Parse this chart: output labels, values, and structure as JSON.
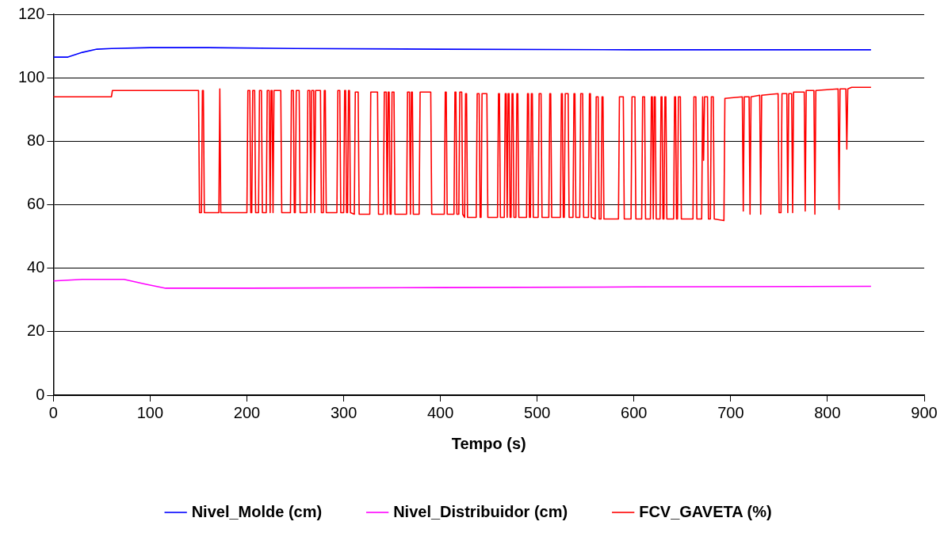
{
  "chart_data": {
    "type": "line",
    "xlabel": "Tempo (s)",
    "xlim": [
      0,
      900
    ],
    "xticks": [
      0,
      100,
      200,
      300,
      400,
      500,
      600,
      700,
      800,
      900
    ],
    "ylim": [
      0,
      120
    ],
    "yticks": [
      0,
      20,
      40,
      60,
      80,
      100,
      120
    ],
    "grid": "y",
    "legend": "bottom",
    "marker": "none",
    "line_style": "solid",
    "series": [
      {
        "name": "Nivel_Molde (cm)",
        "color": "#0000ff",
        "x": [
          0,
          15,
          30,
          45,
          60,
          100,
          160,
          250,
          400,
          600,
          845
        ],
        "values": [
          106.5,
          106.5,
          108,
          109,
          109.2,
          109.5,
          109.5,
          109.2,
          109,
          108.8,
          108.8
        ]
      },
      {
        "name": "Nivel_Distribuidor (cm)",
        "color": "#ff00ff",
        "x": [
          0,
          30,
          73,
          95,
          116,
          200,
          400,
          600,
          845
        ],
        "values": [
          36,
          36.5,
          36.5,
          35,
          33.7,
          33.7,
          33.9,
          34.1,
          34.3
        ]
      },
      {
        "name": "FCV_GAVETA (%)",
        "color": "#ff0000",
        "x": [
          0,
          60,
          61,
          150,
          151,
          153,
          154,
          155,
          156,
          171,
          172,
          173,
          200,
          201,
          203,
          204,
          205,
          206,
          208,
          209,
          212,
          213,
          215,
          216,
          220,
          221,
          223,
          224,
          224,
          225,
          226,
          227,
          227,
          228,
          235,
          236,
          245,
          246,
          248,
          249,
          250,
          251,
          254,
          255,
          262,
          263,
          265,
          266,
          266,
          267,
          269,
          270,
          270,
          271,
          276,
          277,
          279,
          280,
          281,
          282,
          293,
          294,
          296,
          297,
          300,
          301,
          302,
          303,
          304,
          305,
          306,
          307,
          311,
          312,
          315,
          316,
          327,
          328,
          335,
          336,
          341,
          342,
          344,
          345,
          345,
          346,
          347,
          348,
          349,
          350,
          352,
          353,
          365,
          366,
          368,
          369,
          369,
          370,
          371,
          372,
          378,
          379,
          390,
          391,
          404,
          405,
          406,
          407,
          414,
          415,
          416,
          417,
          419,
          420,
          422,
          423,
          425,
          426,
          427,
          428,
          437,
          438,
          440,
          441,
          442,
          443,
          448,
          449,
          459,
          460,
          461,
          462,
          466,
          467,
          468,
          469,
          469,
          470,
          471,
          472,
          473,
          474,
          475,
          476,
          478,
          479,
          480,
          481,
          489,
          490,
          491,
          492,
          493,
          494,
          495,
          496,
          501,
          502,
          504,
          505,
          512,
          513,
          514,
          515,
          524,
          525,
          526,
          527,
          528,
          529,
          532,
          533,
          537,
          538,
          539,
          540,
          544,
          545,
          547,
          548,
          553,
          554,
          555,
          556,
          560,
          561,
          563,
          564,
          566,
          567,
          568,
          569,
          584,
          585,
          589,
          590,
          597,
          598,
          601,
          602,
          608,
          609,
          611,
          612,
          617,
          618,
          619,
          620,
          620,
          621,
          622,
          623,
          627,
          628,
          629,
          630,
          631,
          632,
          633,
          634,
          641,
          642,
          643,
          644,
          645,
          646,
          648,
          649,
          661,
          662,
          664,
          665,
          670,
          671,
          672,
          673,
          674,
          676,
          677,
          679,
          680,
          682,
          683,
          693,
          694,
          712,
          713,
          714,
          719,
          720,
          721,
          730,
          731,
          732,
          749,
          750,
          752,
          753,
          758,
          759,
          760,
          763,
          764,
          765,
          776,
          777,
          778,
          786,
          787,
          788,
          811,
          812,
          813,
          819,
          820,
          821,
          825,
          845
        ],
        "values": [
          94,
          94,
          96,
          96,
          57.5,
          57.5,
          96,
          96,
          57.5,
          57.5,
          96.5,
          57.5,
          57.5,
          96,
          96,
          57.5,
          57.5,
          96,
          96,
          57.5,
          57.5,
          96,
          96,
          57.5,
          57.5,
          96,
          96,
          57.5,
          57.5,
          96,
          96,
          57.5,
          57.5,
          96,
          96,
          57.5,
          57.5,
          96,
          96,
          57.5,
          57.5,
          96,
          96,
          57.5,
          57.5,
          96,
          96,
          57.5,
          57.5,
          96,
          96,
          57.5,
          57.5,
          96,
          96,
          57.5,
          57.5,
          96,
          96,
          57.5,
          57.5,
          96,
          96,
          57.5,
          57.5,
          96,
          96,
          57.5,
          57.5,
          96,
          96,
          57.5,
          57,
          95.5,
          95.5,
          57,
          57,
          95.5,
          95.5,
          57,
          57,
          95.5,
          95.5,
          57,
          57,
          95.5,
          95.5,
          57,
          57,
          95.5,
          95.5,
          57,
          57,
          95.5,
          95.5,
          57,
          57,
          95.5,
          95.5,
          57,
          57,
          95.5,
          95.5,
          57,
          57,
          95.5,
          95.5,
          57,
          57,
          95.5,
          95.5,
          57,
          57,
          95.5,
          95.5,
          57,
          56,
          95,
          95,
          56,
          56,
          95,
          95,
          56,
          56,
          95,
          95,
          56,
          56,
          95,
          95,
          56,
          56,
          95,
          95,
          56,
          56,
          95,
          95,
          56,
          56,
          95,
          95,
          56,
          56,
          95,
          95,
          56,
          56,
          95,
          95,
          56,
          56,
          95,
          95,
          56,
          56,
          95,
          95,
          56,
          56,
          95,
          95,
          56,
          56,
          95,
          95,
          56,
          56,
          95,
          95,
          56,
          56,
          95,
          95,
          56,
          56,
          95,
          95,
          56,
          56,
          95,
          95,
          56,
          55.5,
          94,
          94,
          55.5,
          55.5,
          94,
          94,
          55.5,
          55.5,
          94,
          94,
          55.5,
          55.5,
          94,
          94,
          55.5,
          55.5,
          94,
          94,
          55.5,
          55.5,
          94,
          94,
          55.5,
          55.5,
          94,
          94,
          55.5,
          55.5,
          94,
          94,
          55.5,
          55.5,
          94,
          94,
          55.5,
          55.5,
          94,
          94,
          55.5,
          55.5,
          94,
          94,
          55.5,
          55.5,
          94,
          94,
          55.5,
          55.5,
          94,
          74,
          94,
          94,
          94,
          55.5,
          55.5,
          94,
          94,
          55.5,
          55,
          93.5,
          94,
          58,
          94,
          94,
          57,
          94,
          94.5,
          57,
          94.5,
          95,
          57.5,
          57.5,
          95,
          95,
          57.5,
          95,
          95,
          57.5,
          95.5,
          95.5,
          58,
          96,
          96,
          57,
          96,
          96.5,
          58.5,
          96.5,
          96.5,
          77.5,
          96.5,
          97,
          97
        ]
      }
    ]
  }
}
